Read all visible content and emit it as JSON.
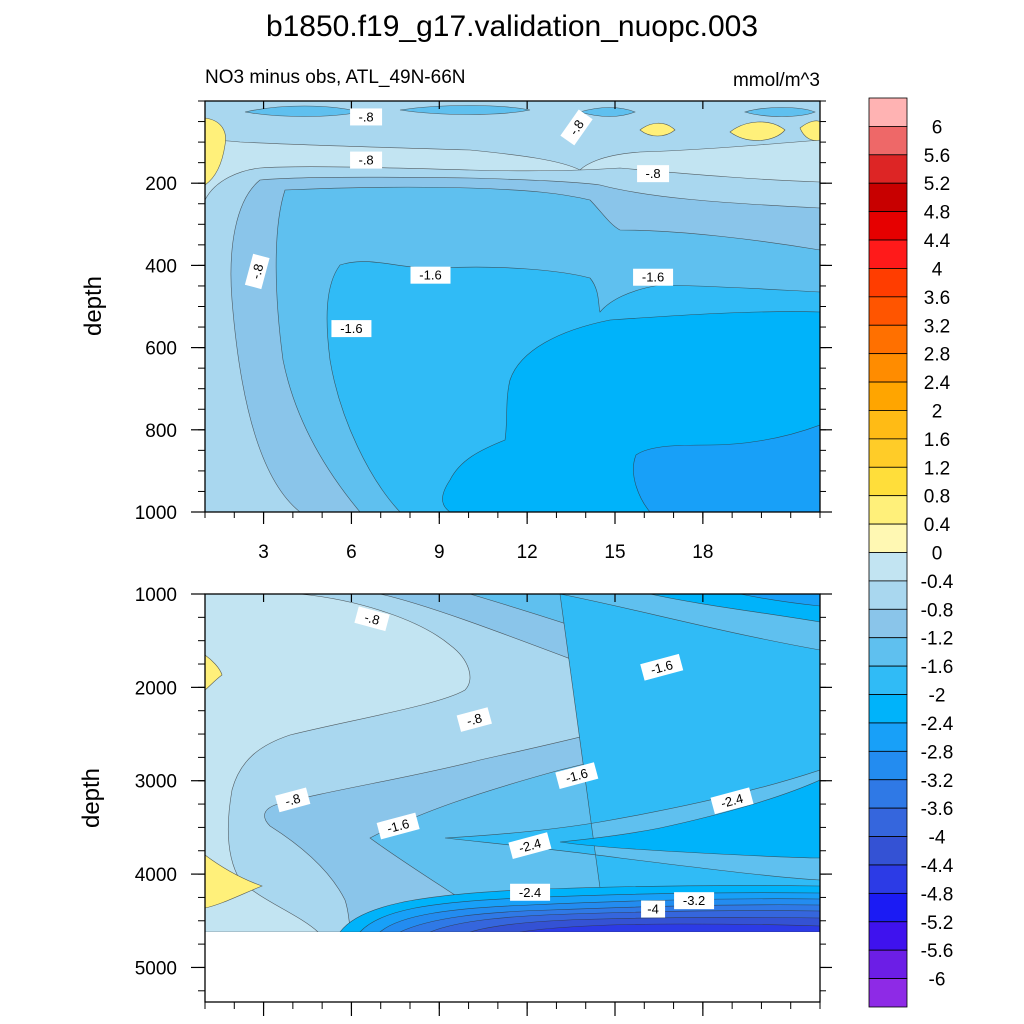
{
  "title": "b1850.f19_g17.validation_nuopc.003",
  "chart_data": [
    {
      "type": "heatmap",
      "panel": "upper",
      "subtitle_left": "NO3 minus obs, ATL_49N-66N",
      "subtitle_right": "mmol/m^3",
      "xlabel": "",
      "ylabel": "depth",
      "xlim": [
        1,
        22
      ],
      "ylim": [
        1000,
        0
      ],
      "xticks": [
        "3",
        "6",
        "9",
        "12",
        "15",
        "18"
      ],
      "yticks": [
        "200",
        "400",
        "600",
        "800",
        "1000"
      ],
      "contour_labels": [
        {
          "text": "-.8",
          "x": 6.5,
          "y": 40
        },
        {
          "text": "-.8",
          "x": 13.7,
          "y": 65
        },
        {
          "text": "-.8",
          "x": 6.5,
          "y": 145
        },
        {
          "text": "-.8",
          "x": 16.3,
          "y": 178
        },
        {
          "text": "-.8",
          "x": 2.8,
          "y": 415
        },
        {
          "text": "-1.6",
          "x": 8.7,
          "y": 425
        },
        {
          "text": "-1.6",
          "x": 16.3,
          "y": 430
        },
        {
          "text": "-1.6",
          "x": 6.0,
          "y": 555
        }
      ]
    },
    {
      "type": "heatmap",
      "panel": "lower",
      "xlabel": "",
      "ylabel": "depth",
      "xlim": [
        1,
        22
      ],
      "ylim": [
        5370,
        1000
      ],
      "xticks": [],
      "yticks": [
        "1000",
        "2000",
        "3000",
        "4000",
        "5000"
      ],
      "contour_labels": [
        {
          "text": "-.8",
          "x": 6.7,
          "y": 1270
        },
        {
          "text": "-1.6",
          "x": 16.6,
          "y": 1790
        },
        {
          "text": "-.8",
          "x": 10.2,
          "y": 2350
        },
        {
          "text": "-1.6",
          "x": 13.7,
          "y": 2950
        },
        {
          "text": "-.8",
          "x": 4.0,
          "y": 3210
        },
        {
          "text": "-2.4",
          "x": 19.0,
          "y": 3220
        },
        {
          "text": "-1.6",
          "x": 7.6,
          "y": 3490
        },
        {
          "text": "-2.4",
          "x": 12.1,
          "y": 3700
        },
        {
          "text": "-2.4",
          "x": 12.1,
          "y": 4200
        },
        {
          "text": "-4",
          "x": 16.3,
          "y": 4380
        },
        {
          "text": "-3.2",
          "x": 17.7,
          "y": 4290
        }
      ]
    }
  ],
  "colorbar": {
    "labels": [
      "6",
      "5.6",
      "5.2",
      "4.8",
      "4.4",
      "4",
      "3.6",
      "3.2",
      "2.8",
      "2.4",
      "2",
      "1.6",
      "1.2",
      "0.8",
      "0.4",
      "0",
      "-0.4",
      "-0.8",
      "-1.2",
      "-1.6",
      "-2",
      "-2.4",
      "-2.8",
      "-3.2",
      "-3.6",
      "-4",
      "-4.4",
      "-4.8",
      "-5.2",
      "-5.6",
      "-6"
    ],
    "colors": [
      "#ffb3b3",
      "#ee6868",
      "#dd2525",
      "#c80000",
      "#e60000",
      "#ff1a1a",
      "#ff3d00",
      "#ff5500",
      "#ff7000",
      "#ff8c00",
      "#ffa500",
      "#ffbb15",
      "#ffcc28",
      "#ffde3a",
      "#fff07a",
      "#fff8b3",
      "#c2e4f2",
      "#a9d7ef",
      "#8ac5ea",
      "#5fc0ef",
      "#30bbf6",
      "#00b3fa",
      "#18a0f8",
      "#238cf0",
      "#2f79e6",
      "#3566dd",
      "#3452d4",
      "#2c3be6",
      "#1b1bf4",
      "#3f12ee",
      "#6c1ee6",
      "#8e2ae6"
    ]
  }
}
